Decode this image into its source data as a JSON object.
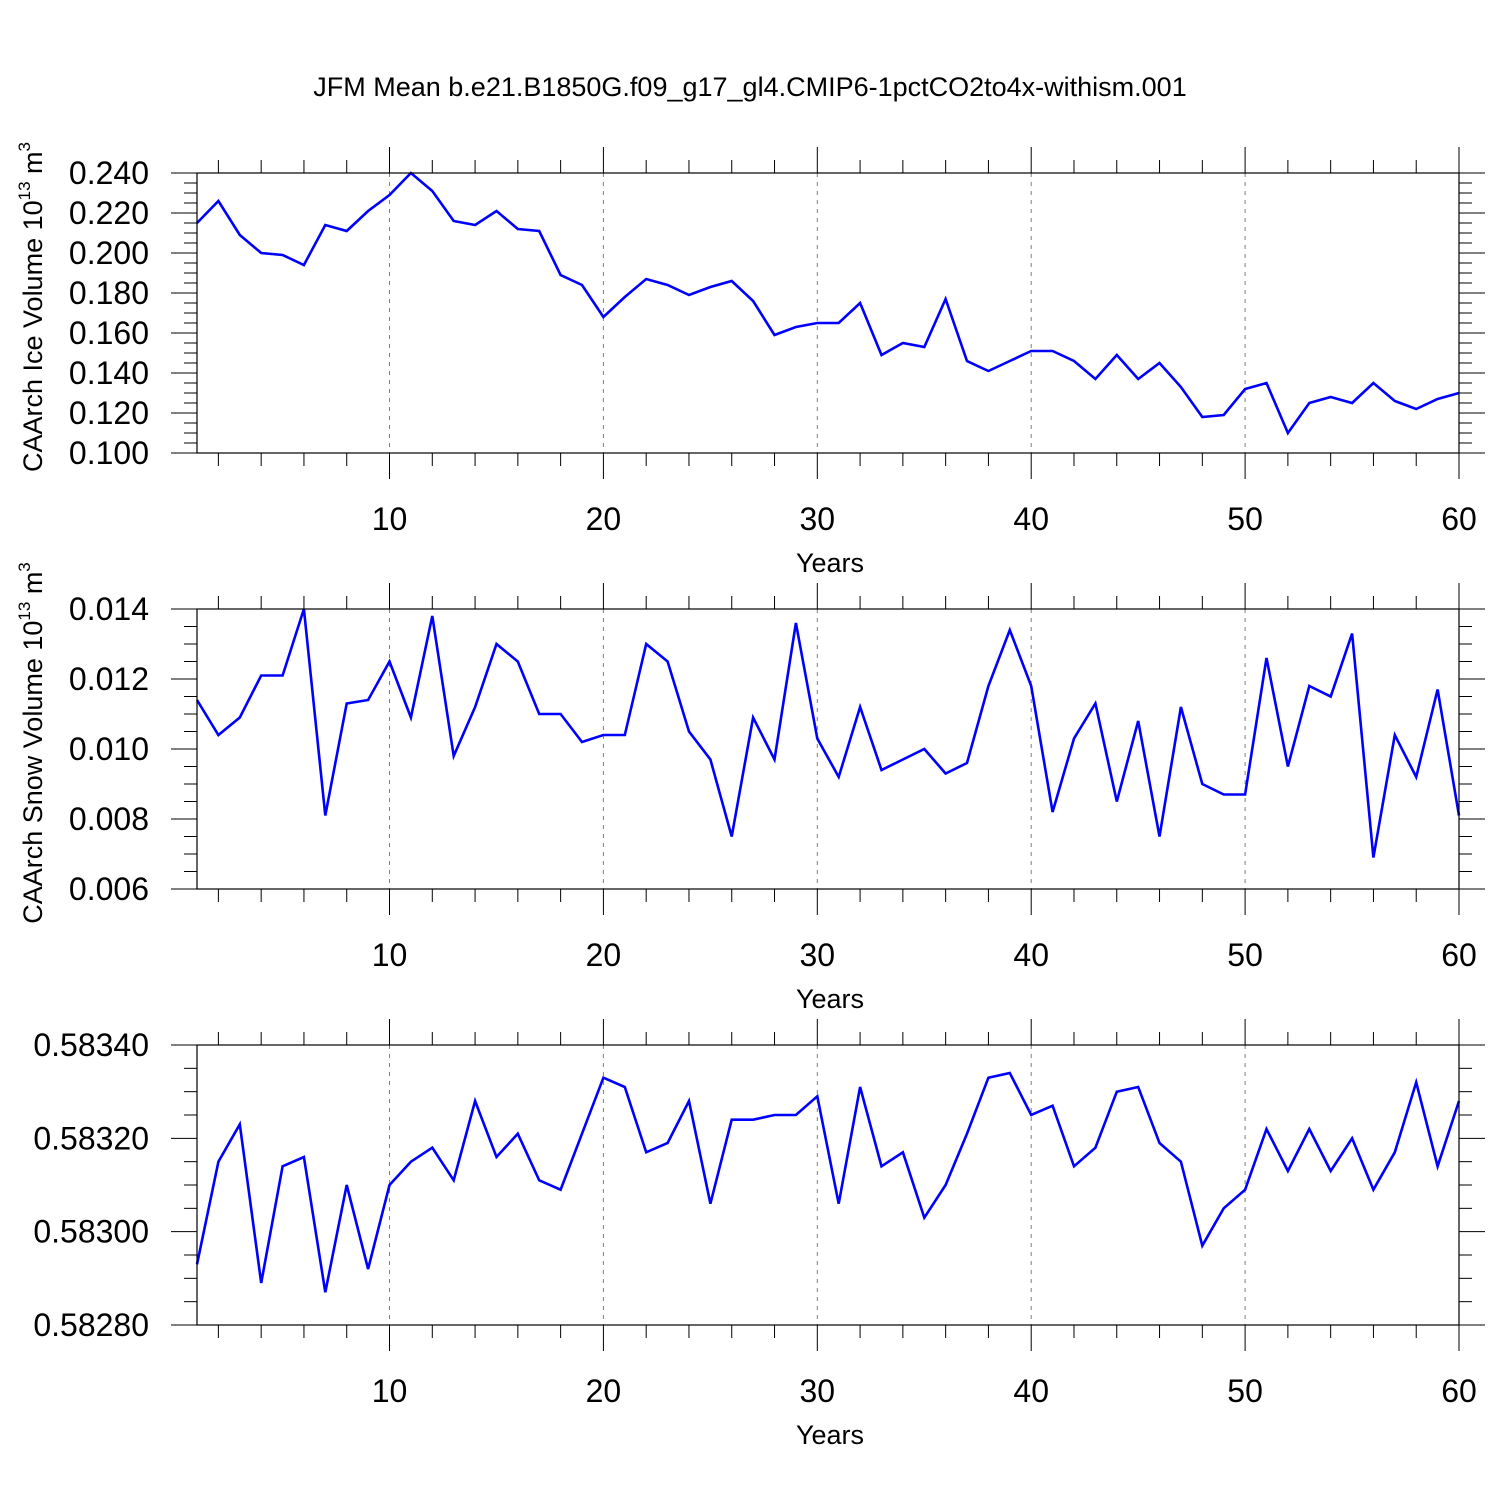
{
  "title": "JFM Mean b.e21.B1850G.f09_g17_gl4.CMIP6-1pctCO2to4x-withism.001",
  "colors": {
    "line": "#0000ff",
    "axis": "#000000",
    "grid": "#7f7f7f"
  },
  "chart_data": [
    {
      "type": "line",
      "xlabel": "Years",
      "ylabel": "CAArch Ice Volume 10",
      "ylabel_exp": "13",
      "ylabel_unit": " m",
      "ylabel_unit_exp": "3",
      "xlim": [
        1,
        60
      ],
      "ylim": [
        0.1,
        0.24
      ],
      "xticks": [
        10,
        20,
        30,
        40,
        50,
        60
      ],
      "yticks": [
        "0.100",
        "0.120",
        "0.140",
        "0.160",
        "0.180",
        "0.200",
        "0.220",
        "0.240"
      ],
      "grid_x": true,
      "x": [
        1,
        2,
        3,
        4,
        5,
        6,
        7,
        8,
        9,
        10,
        11,
        12,
        13,
        14,
        15,
        16,
        17,
        18,
        19,
        20,
        21,
        22,
        23,
        24,
        25,
        26,
        27,
        28,
        29,
        30,
        31,
        32,
        33,
        34,
        35,
        36,
        37,
        38,
        39,
        40,
        41,
        42,
        43,
        44,
        45,
        46,
        47,
        48,
        49,
        50,
        51,
        52,
        53,
        54,
        55,
        56,
        57,
        58,
        59,
        60
      ],
      "values": [
        0.215,
        0.226,
        0.209,
        0.2,
        0.199,
        0.194,
        0.214,
        0.211,
        0.221,
        0.229,
        0.24,
        0.231,
        0.216,
        0.214,
        0.221,
        0.212,
        0.211,
        0.189,
        0.184,
        0.168,
        0.178,
        0.187,
        0.184,
        0.179,
        0.183,
        0.186,
        0.176,
        0.159,
        0.163,
        0.165,
        0.165,
        0.175,
        0.149,
        0.155,
        0.153,
        0.177,
        0.146,
        0.141,
        0.146,
        0.151,
        0.151,
        0.146,
        0.137,
        0.149,
        0.137,
        0.145,
        0.133,
        0.118,
        0.119,
        0.132,
        0.135,
        0.11,
        0.125,
        0.128,
        0.125,
        0.135,
        0.126,
        0.122,
        0.127,
        0.13
      ]
    },
    {
      "type": "line",
      "xlabel": "Years",
      "ylabel": "CAArch Snow Volume 10",
      "ylabel_exp": "13",
      "ylabel_unit": " m",
      "ylabel_unit_exp": "3",
      "xlim": [
        1,
        60
      ],
      "ylim": [
        0.006,
        0.014
      ],
      "xticks": [
        10,
        20,
        30,
        40,
        50,
        60
      ],
      "yticks": [
        "0.006",
        "0.008",
        "0.010",
        "0.012",
        "0.014"
      ],
      "grid_x": true,
      "x": [
        1,
        2,
        3,
        4,
        5,
        6,
        7,
        8,
        9,
        10,
        11,
        12,
        13,
        14,
        15,
        16,
        17,
        18,
        19,
        20,
        21,
        22,
        23,
        24,
        25,
        26,
        27,
        28,
        29,
        30,
        31,
        32,
        33,
        34,
        35,
        36,
        37,
        38,
        39,
        40,
        41,
        42,
        43,
        44,
        45,
        46,
        47,
        48,
        49,
        50,
        51,
        52,
        53,
        54,
        55,
        56,
        57,
        58,
        59,
        60
      ],
      "values": [
        0.0114,
        0.0104,
        0.0109,
        0.0121,
        0.0121,
        0.014,
        0.0081,
        0.0113,
        0.0114,
        0.0125,
        0.0109,
        0.0138,
        0.0098,
        0.0112,
        0.013,
        0.0125,
        0.011,
        0.011,
        0.0102,
        0.0104,
        0.0104,
        0.013,
        0.0125,
        0.0105,
        0.0097,
        0.0075,
        0.0109,
        0.0097,
        0.0136,
        0.0103,
        0.0092,
        0.0112,
        0.0094,
        0.0097,
        0.01,
        0.0093,
        0.0096,
        0.0118,
        0.0134,
        0.0118,
        0.0082,
        0.0103,
        0.0113,
        0.0085,
        0.0108,
        0.0075,
        0.0112,
        0.009,
        0.0087,
        0.0087,
        0.0126,
        0.0095,
        0.0118,
        0.0115,
        0.0133,
        0.0069,
        0.0104,
        0.0092,
        0.0117,
        0.0081
      ]
    },
    {
      "type": "line",
      "xlabel": "Years",
      "xlim": [
        1,
        60
      ],
      "ylim": [
        0.5828,
        0.5834
      ],
      "xticks": [
        10,
        20,
        30,
        40,
        50,
        60
      ],
      "yticks": [
        "0.58280",
        "0.58300",
        "0.58320",
        "0.58340"
      ],
      "grid_x": true,
      "x": [
        1,
        2,
        3,
        4,
        5,
        6,
        7,
        8,
        9,
        10,
        11,
        12,
        13,
        14,
        15,
        16,
        17,
        18,
        19,
        20,
        21,
        22,
        23,
        24,
        25,
        26,
        27,
        28,
        29,
        30,
        31,
        32,
        33,
        34,
        35,
        36,
        37,
        38,
        39,
        40,
        41,
        42,
        43,
        44,
        45,
        46,
        47,
        48,
        49,
        50,
        51,
        52,
        53,
        54,
        55,
        56,
        57,
        58,
        59,
        60
      ],
      "values": [
        0.58293,
        0.58315,
        0.58323,
        0.58289,
        0.58314,
        0.58316,
        0.58287,
        0.5831,
        0.58292,
        0.5831,
        0.58315,
        0.58318,
        0.58311,
        0.58328,
        0.58316,
        0.58321,
        0.58311,
        0.58309,
        0.58321,
        0.58333,
        0.58331,
        0.58317,
        0.58319,
        0.58328,
        0.58306,
        0.58324,
        0.58324,
        0.58325,
        0.58325,
        0.58329,
        0.58306,
        0.58331,
        0.58314,
        0.58317,
        0.58303,
        0.5831,
        0.58321,
        0.58333,
        0.58334,
        0.58325,
        0.58327,
        0.58314,
        0.58318,
        0.5833,
        0.58331,
        0.58319,
        0.58315,
        0.58297,
        0.58305,
        0.58309,
        0.58322,
        0.58313,
        0.58322,
        0.58313,
        0.5832,
        0.58309,
        0.58317,
        0.58332,
        0.58314,
        0.58328
      ]
    }
  ]
}
